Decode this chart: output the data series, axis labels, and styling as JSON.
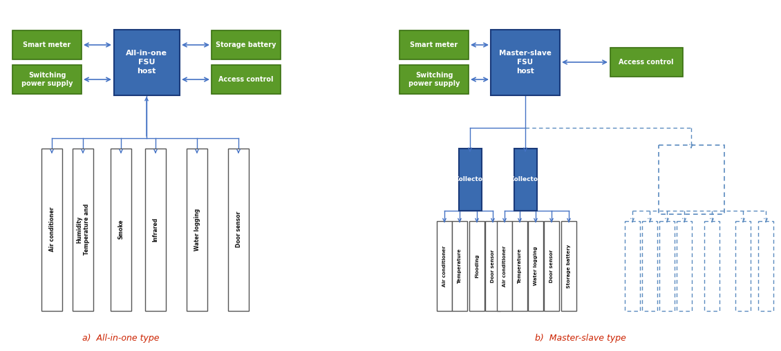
{
  "fig_width": 11.3,
  "fig_height": 5.08,
  "dpi": 100,
  "bg_color": "#ffffff",
  "green_color": "#5b9a28",
  "blue_color": "#3a6bb0",
  "line_color": "#4472c4",
  "dash_color": "#5a8abf",
  "white": "#ffffff",
  "label_red": "#cc2200",
  "label_a": "a)  All-in-one type",
  "label_b": "b)  Master-slave type",
  "box_a_text": "All-in-one\nFSU\nhost",
  "box_b_text": "Master-slave\nFSU\nhost",
  "sensors_a": [
    "Air conditioner",
    "Humidity\nTemperature and",
    "Smoke",
    "Infrared",
    "Water logging",
    "Door sensor"
  ],
  "sensors_b1": [
    "Air conditioner",
    "Temperature",
    "Flooding",
    "Door sensor"
  ],
  "sensors_b2": [
    "Air conditioner",
    "Temperature",
    "Water logging",
    "Door sensor",
    "Storage battery"
  ]
}
